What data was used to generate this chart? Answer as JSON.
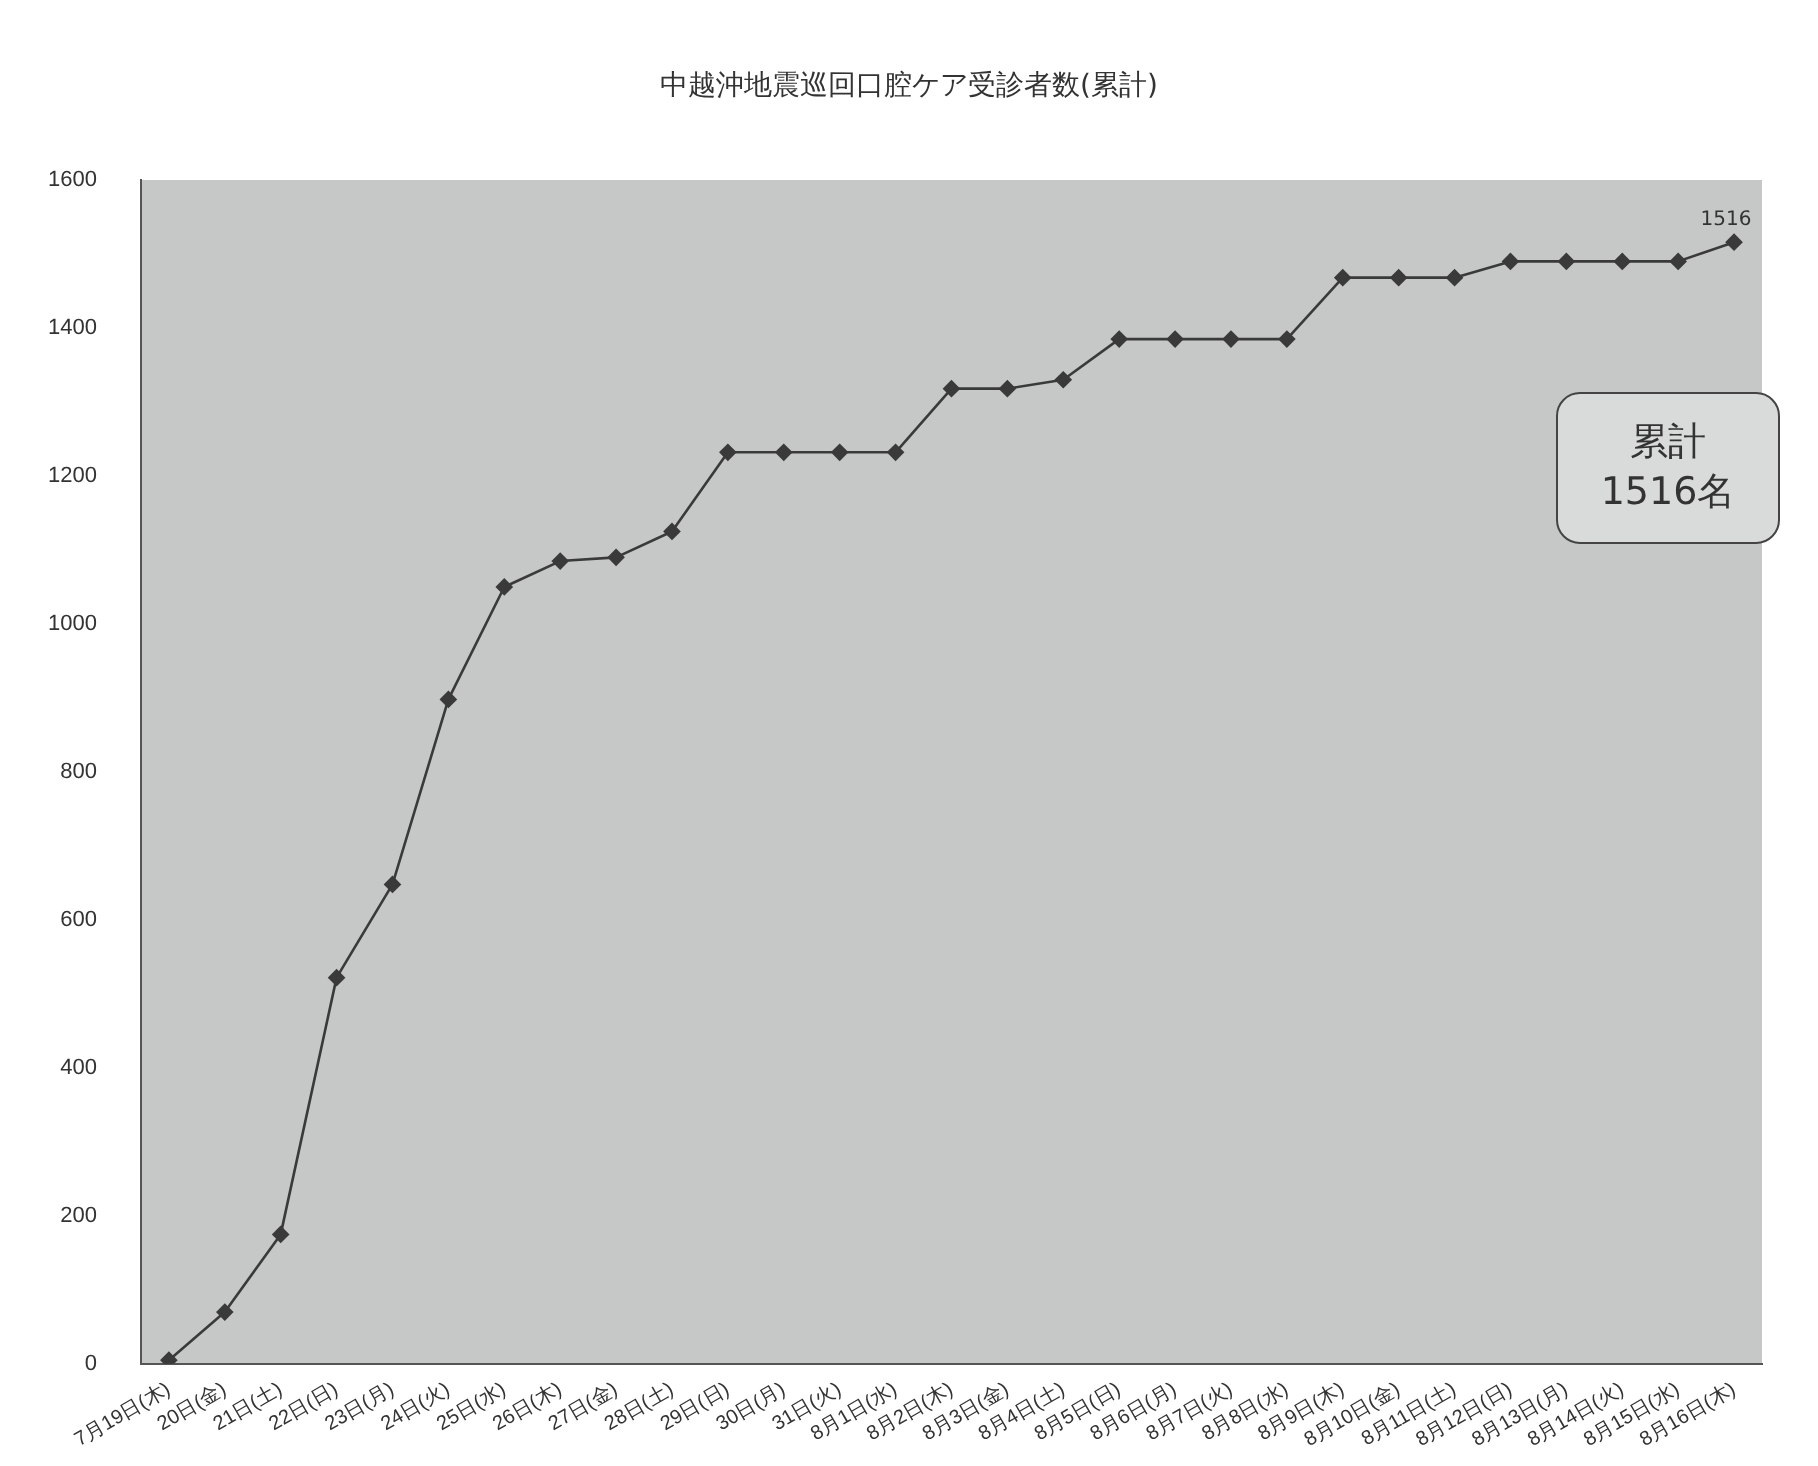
{
  "chart_data": {
    "type": "line",
    "title": "中越沖地震巡回口腔ケア受診者数(累計)",
    "categories": [
      "7月19日(木)",
      "20日(金)",
      "21日(土)",
      "22日(日)",
      "23日(月)",
      "24日(火)",
      "25日(水)",
      "26日(木)",
      "27日(金)",
      "28日(土)",
      "29日(日)",
      "30日(月)",
      "31日(火)",
      "8月1日(水)",
      "8月2日(木)",
      "8月3日(金)",
      "8月4日(土)",
      "8月5日(日)",
      "8月6日(月)",
      "8月7日(火)",
      "8月8日(水)",
      "8月9日(木)",
      "8月10日(金)",
      "8月11日(土)",
      "8月12日(日)",
      "8月13日(月)",
      "8月14日(火)",
      "8月15日(水)",
      "8月16日(木)"
    ],
    "series": [
      {
        "color": "#3a3a3a",
        "values": [
          5,
          70,
          175,
          522,
          648,
          898,
          1050,
          1085,
          1090,
          1125,
          1232,
          1232,
          1232,
          1232,
          1318,
          1318,
          1330,
          1385,
          1385,
          1385,
          1385,
          1468,
          1468,
          1468,
          1490,
          1490,
          1490,
          1490,
          1516
        ],
        "value_labels": [
          null,
          null,
          null,
          null,
          null,
          null,
          null,
          null,
          null,
          null,
          null,
          null,
          null,
          null,
          null,
          null,
          null,
          null,
          null,
          null,
          null,
          null,
          null,
          null,
          null,
          null,
          null,
          null,
          "1516"
        ]
      }
    ],
    "ylim": [
      0,
      1600
    ],
    "yticks": [
      0,
      200,
      400,
      600,
      800,
      1000,
      1200,
      1400,
      1600
    ],
    "grid": false,
    "legend": false,
    "marker": "diamond",
    "line_style": "solid",
    "annotations": [
      "累計\n1516名"
    ]
  }
}
